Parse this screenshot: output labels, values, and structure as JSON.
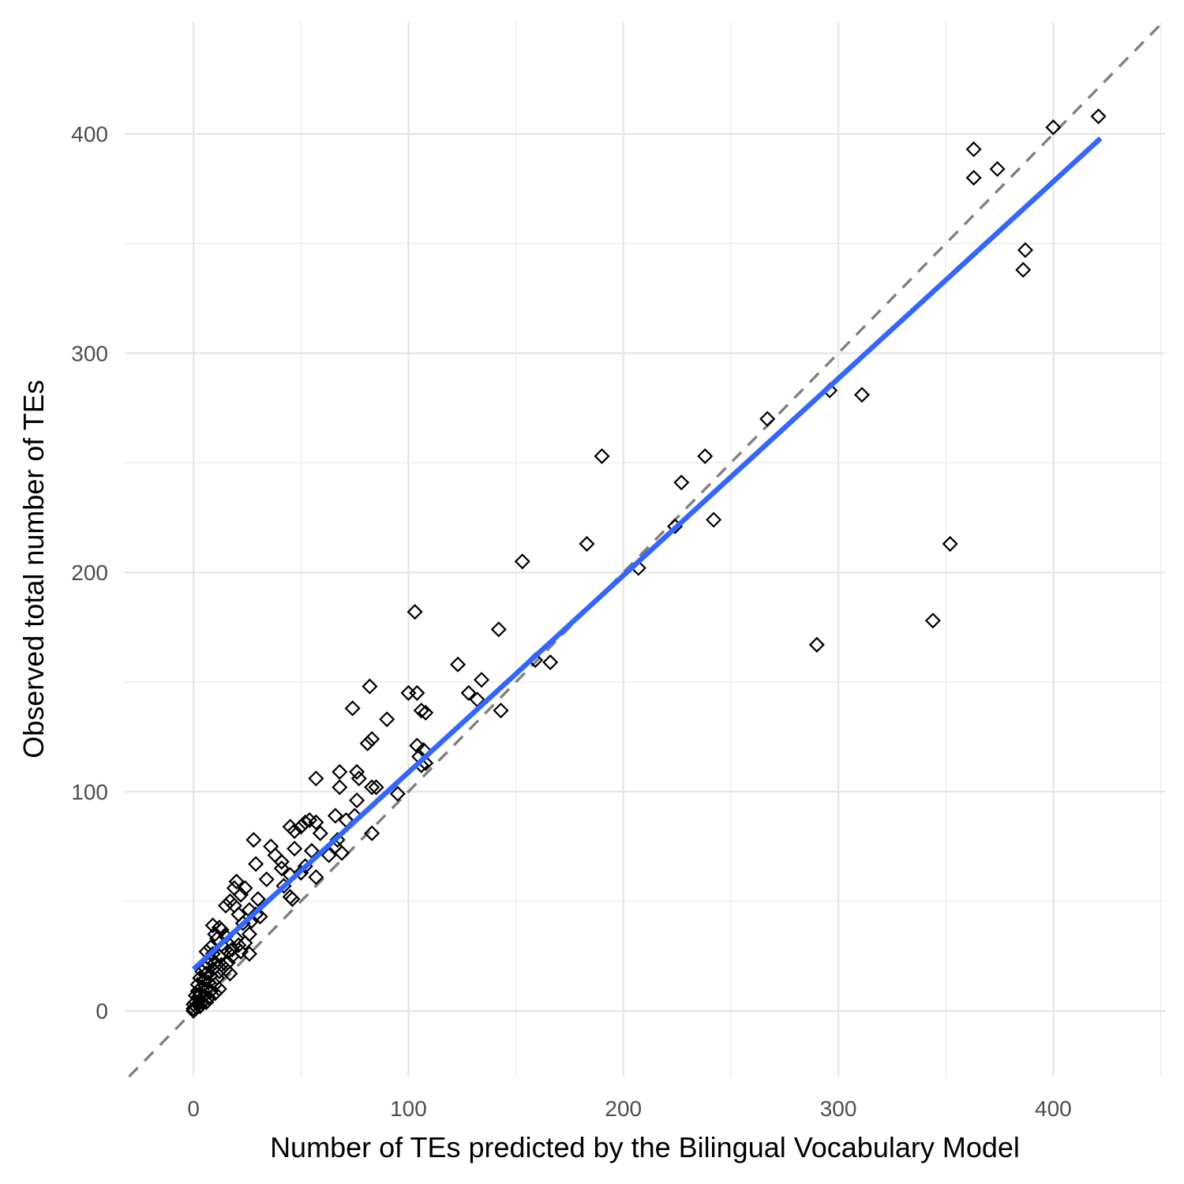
{
  "chart_data": {
    "type": "scatter",
    "title": "",
    "xlabel": "Number of TEs predicted by the Bilingual Vocabulary Model",
    "ylabel": "Observed total number of TEs",
    "xlim": [
      -32,
      452
    ],
    "ylim": [
      -30,
      451
    ],
    "x_ticks": [
      0,
      100,
      200,
      300,
      400
    ],
    "y_ticks": [
      0,
      100,
      200,
      300,
      400
    ],
    "x_tick_labels": [
      "0",
      "100",
      "200",
      "300",
      "400"
    ],
    "y_tick_labels": [
      "0",
      "100",
      "200",
      "300",
      "400"
    ],
    "grid": true,
    "marker": "open-diamond",
    "colors": {
      "points": "#000000",
      "fit_line": "#3366ff",
      "identity_line": "#808080"
    },
    "identity_line": {
      "slope": 1,
      "intercept": 0,
      "style": "dashed"
    },
    "fit_line": {
      "x": [
        0,
        422
      ],
      "y": [
        19,
        398
      ],
      "style": "solid"
    },
    "points": [
      [
        421,
        408
      ],
      [
        400,
        403
      ],
      [
        363,
        393
      ],
      [
        374,
        384
      ],
      [
        363,
        380
      ],
      [
        387,
        347
      ],
      [
        386,
        338
      ],
      [
        352,
        213
      ],
      [
        344,
        178
      ],
      [
        296,
        283
      ],
      [
        311,
        281
      ],
      [
        290,
        167
      ],
      [
        267,
        270
      ],
      [
        190,
        253
      ],
      [
        238,
        253
      ],
      [
        227,
        241
      ],
      [
        224,
        221
      ],
      [
        242,
        224
      ],
      [
        183,
        213
      ],
      [
        207,
        202
      ],
      [
        153,
        205
      ],
      [
        103,
        182
      ],
      [
        142,
        174
      ],
      [
        123,
        158
      ],
      [
        159,
        160
      ],
      [
        166,
        159
      ],
      [
        134,
        151
      ],
      [
        128,
        145
      ],
      [
        132,
        142
      ],
      [
        143,
        137
      ],
      [
        82,
        148
      ],
      [
        100,
        145
      ],
      [
        104,
        145
      ],
      [
        106,
        137
      ],
      [
        108,
        136
      ],
      [
        74,
        138
      ],
      [
        90,
        133
      ],
      [
        83,
        124
      ],
      [
        81,
        122
      ],
      [
        104,
        121
      ],
      [
        107,
        119
      ],
      [
        105,
        116
      ],
      [
        108,
        113
      ],
      [
        106,
        112
      ],
      [
        68,
        109
      ],
      [
        76,
        109
      ],
      [
        77,
        106
      ],
      [
        68,
        102
      ],
      [
        83,
        102
      ],
      [
        85,
        102
      ],
      [
        95,
        99
      ],
      [
        57,
        106
      ],
      [
        76,
        96
      ],
      [
        75,
        89
      ],
      [
        66,
        89
      ],
      [
        71,
        87
      ],
      [
        54,
        87
      ],
      [
        57,
        86
      ],
      [
        52,
        86
      ],
      [
        50,
        84
      ],
      [
        45,
        84
      ],
      [
        59,
        81
      ],
      [
        83,
        81
      ],
      [
        47,
        82
      ],
      [
        28,
        78
      ],
      [
        67,
        78
      ],
      [
        66,
        75
      ],
      [
        36,
        75
      ],
      [
        38,
        71
      ],
      [
        55,
        73
      ],
      [
        47,
        74
      ],
      [
        69,
        72
      ],
      [
        63,
        71
      ],
      [
        41,
        68
      ],
      [
        29,
        67
      ],
      [
        41,
        65
      ],
      [
        52,
        66
      ],
      [
        45,
        62
      ],
      [
        57,
        61
      ],
      [
        50,
        63
      ],
      [
        34,
        60
      ],
      [
        20,
        59
      ],
      [
        24,
        56
      ],
      [
        19,
        56
      ],
      [
        22,
        53
      ],
      [
        42,
        57
      ],
      [
        45,
        52
      ],
      [
        46,
        51
      ],
      [
        30,
        51
      ],
      [
        17,
        50
      ],
      [
        15,
        48
      ],
      [
        19,
        48
      ],
      [
        26,
        46
      ],
      [
        21,
        44
      ],
      [
        29,
        44
      ],
      [
        31,
        43
      ],
      [
        23,
        40
      ],
      [
        27,
        41
      ],
      [
        9,
        39
      ],
      [
        12,
        38
      ],
      [
        13,
        37
      ],
      [
        10,
        35
      ],
      [
        11,
        33
      ],
      [
        15,
        34
      ],
      [
        20,
        33
      ],
      [
        26,
        35
      ],
      [
        24,
        31
      ],
      [
        21,
        30
      ],
      [
        18,
        28
      ],
      [
        22,
        27
      ],
      [
        26,
        26
      ],
      [
        8,
        29
      ],
      [
        14,
        29
      ],
      [
        16,
        27
      ],
      [
        6,
        27
      ],
      [
        9,
        26
      ],
      [
        12,
        25
      ],
      [
        18,
        25
      ],
      [
        8,
        23
      ],
      [
        10,
        22
      ],
      [
        13,
        21
      ],
      [
        16,
        22
      ],
      [
        7,
        21
      ],
      [
        5,
        20
      ],
      [
        9,
        19
      ],
      [
        12,
        18
      ],
      [
        15,
        19
      ],
      [
        4,
        18
      ],
      [
        6,
        17
      ],
      [
        8,
        16
      ],
      [
        11,
        15
      ],
      [
        17,
        17
      ],
      [
        3,
        15
      ],
      [
        5,
        14
      ],
      [
        7,
        13
      ],
      [
        10,
        12
      ],
      [
        2,
        12
      ],
      [
        4,
        11
      ],
      [
        6,
        10
      ],
      [
        8,
        9
      ],
      [
        12,
        10
      ],
      [
        2,
        9
      ],
      [
        3,
        8
      ],
      [
        5,
        7
      ],
      [
        7,
        6
      ],
      [
        1,
        7
      ],
      [
        2,
        6
      ],
      [
        3,
        5
      ],
      [
        4,
        4
      ],
      [
        1,
        4
      ],
      [
        2,
        3
      ],
      [
        0,
        3
      ],
      [
        1,
        2
      ],
      [
        0,
        1
      ],
      [
        3,
        2
      ],
      [
        0,
        0
      ],
      [
        6,
        4
      ],
      [
        10,
        8
      ]
    ]
  }
}
